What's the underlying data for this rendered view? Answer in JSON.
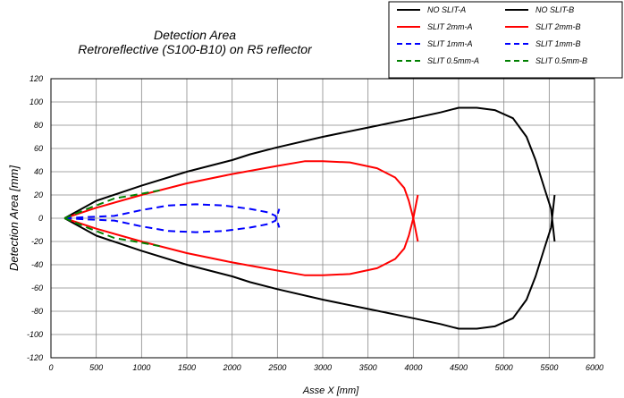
{
  "chart_data": {
    "type": "line",
    "title": "Detection Area",
    "subtitle": "Retroreflective (S100-B10) on R5 reflector",
    "xlabel": "Asse X [mm]",
    "ylabel": "Detection Area [mm]",
    "xlim": [
      0,
      6000
    ],
    "ylim": [
      -120,
      120
    ],
    "xticks": [
      "0",
      "500",
      "1000",
      "1500",
      "2000",
      "2500",
      "3000",
      "3500",
      "4000",
      "4500",
      "5000",
      "5500",
      "6000"
    ],
    "yticks": [
      "120",
      "100",
      "80",
      "60",
      "40",
      "20",
      "0",
      "-20",
      "-40",
      "-60",
      "-80",
      "-100",
      "-120"
    ],
    "grid": true,
    "legend_position": "top-right",
    "series": [
      {
        "name": "NO SLIT-A",
        "color": "#000000",
        "style": "solid",
        "x": [
          150,
          500,
          1000,
          1500,
          2000,
          2200,
          2500,
          3000,
          3500,
          4000,
          4300,
          4500,
          4700,
          4900,
          5100,
          5250,
          5350,
          5450,
          5520,
          5560
        ],
        "y": [
          0,
          -15,
          -28,
          -40,
          -50,
          -55,
          -61,
          -70,
          -78,
          -86,
          -91,
          -95,
          -95,
          -93,
          -86,
          -70,
          -50,
          -25,
          -8,
          20
        ]
      },
      {
        "name": "NO SLIT-B",
        "color": "#000000",
        "style": "solid",
        "x": [
          150,
          500,
          1000,
          1500,
          2000,
          2200,
          2500,
          3000,
          3500,
          4000,
          4300,
          4500,
          4700,
          4900,
          5100,
          5250,
          5350,
          5450,
          5520,
          5560
        ],
        "y": [
          0,
          15,
          28,
          40,
          50,
          55,
          61,
          70,
          78,
          86,
          91,
          95,
          95,
          93,
          86,
          70,
          50,
          25,
          8,
          -20
        ]
      },
      {
        "name": "SLIT 2mm-A",
        "color": "#ff0000",
        "style": "solid",
        "x": [
          150,
          500,
          1000,
          1500,
          2000,
          2500,
          2800,
          3000,
          3300,
          3600,
          3800,
          3900,
          3950,
          4000,
          4050
        ],
        "y": [
          0,
          -9,
          -20,
          -30,
          -38,
          -45,
          -49,
          -49,
          -48,
          -43,
          -35,
          -26,
          -15,
          0,
          20
        ]
      },
      {
        "name": "SLIT 2mm-B",
        "color": "#ff0000",
        "style": "solid",
        "x": [
          150,
          500,
          1000,
          1500,
          2000,
          2500,
          2800,
          3000,
          3300,
          3600,
          3800,
          3900,
          3950,
          4000,
          4050
        ],
        "y": [
          0,
          9,
          20,
          30,
          38,
          45,
          49,
          49,
          48,
          43,
          35,
          26,
          15,
          0,
          -20
        ]
      },
      {
        "name": "SLIT 1mm-A",
        "color": "#0000ff",
        "style": "dashed",
        "x": [
          150,
          400,
          700,
          1000,
          1300,
          1600,
          1900,
          2200,
          2400,
          2480,
          2520
        ],
        "y": [
          0,
          -1,
          -2,
          -7,
          -11,
          -12,
          -11,
          -8,
          -5,
          -2,
          8
        ]
      },
      {
        "name": "SLIT 1mm-B",
        "color": "#0000ff",
        "style": "dashed",
        "x": [
          150,
          400,
          700,
          1000,
          1300,
          1600,
          1900,
          2200,
          2400,
          2480,
          2520
        ],
        "y": [
          0,
          1,
          2,
          7,
          11,
          12,
          11,
          8,
          5,
          2,
          -8
        ]
      },
      {
        "name": "SLIT 0.5mm-A",
        "color": "#008000",
        "style": "dashed",
        "x": [
          150,
          400,
          700,
          1000,
          1200
        ],
        "y": [
          0,
          -8,
          -17,
          -21,
          -24
        ]
      },
      {
        "name": "SLIT 0.5mm-B",
        "color": "#008000",
        "style": "dashed",
        "x": [
          150,
          400,
          700,
          1000,
          1200
        ],
        "y": [
          0,
          8,
          17,
          21,
          24
        ]
      }
    ]
  }
}
